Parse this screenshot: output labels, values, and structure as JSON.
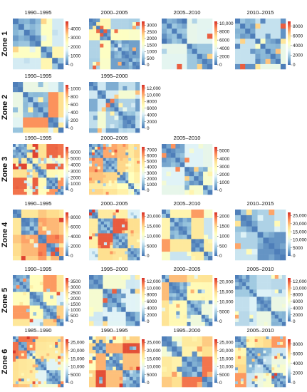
{
  "chart_data": {
    "type": "heatmap",
    "colorscale": [
      "#4575b4",
      "#91bfdb",
      "#e0f3f8",
      "#ffffbf",
      "#fee090",
      "#fc8d59",
      "#d73027"
    ],
    "zones": [
      {
        "label": "Zone 1",
        "panels": [
          {
            "title": "1990–1995",
            "max": 4800,
            "ticks": [
              {
                "v": 0,
                "label": "0"
              },
              {
                "v": 1000,
                "label": "1000"
              },
              {
                "v": 2000,
                "label": "2000"
              },
              {
                "v": 3000,
                "label": "3000"
              },
              {
                "v": 4000,
                "label": "4000"
              }
            ]
          },
          {
            "title": "2000–2005",
            "max": 3300,
            "ticks": [
              {
                "v": 0,
                "label": "0"
              },
              {
                "v": 500,
                "label": "500"
              },
              {
                "v": 1000,
                "label": "1000"
              },
              {
                "v": 1500,
                "label": "1500"
              },
              {
                "v": 2000,
                "label": "2000"
              },
              {
                "v": 2500,
                "label": "2500"
              },
              {
                "v": 3000,
                "label": "3000"
              }
            ]
          },
          {
            "title": "2005–2010",
            "max": 10500,
            "ticks": [
              {
                "v": 0,
                "label": "0"
              },
              {
                "v": 2000,
                "label": "2000"
              },
              {
                "v": 4000,
                "label": "4000"
              },
              {
                "v": 6000,
                "label": "6000"
              },
              {
                "v": 8000,
                "label": "8000"
              },
              {
                "v": 10000,
                "label": "10,000"
              }
            ]
          },
          {
            "title": "2010–2015",
            "max": 9000,
            "ticks": [
              {
                "v": 0,
                "label": "0"
              },
              {
                "v": 2000,
                "label": "2000"
              },
              {
                "v": 4000,
                "label": "4000"
              },
              {
                "v": 6000,
                "label": "6000"
              },
              {
                "v": 8000,
                "label": "8000"
              }
            ]
          }
        ]
      },
      {
        "label": "Zone 2",
        "panels": [
          {
            "title": "1990–1995",
            "max": 1100,
            "ticks": [
              {
                "v": 0,
                "label": "0"
              },
              {
                "v": 200,
                "label": "200"
              },
              {
                "v": 400,
                "label": "400"
              },
              {
                "v": 600,
                "label": "600"
              },
              {
                "v": 800,
                "label": "800"
              },
              {
                "v": 1000,
                "label": "1000"
              }
            ]
          },
          {
            "title": "1995–2000",
            "max": 13000,
            "ticks": [
              {
                "v": 0,
                "label": "0"
              },
              {
                "v": 2000,
                "label": "2000"
              },
              {
                "v": 4000,
                "label": "4000"
              },
              {
                "v": 6000,
                "label": "6000"
              },
              {
                "v": 8000,
                "label": "8000"
              },
              {
                "v": 10000,
                "label": "10,000"
              },
              {
                "v": 12000,
                "label": "12,000"
              }
            ]
          }
        ]
      },
      {
        "label": "Zone 3",
        "panels": [
          {
            "title": "1990–1995",
            "max": 6800,
            "ticks": [
              {
                "v": 0,
                "label": "0"
              },
              {
                "v": 1000,
                "label": "1000"
              },
              {
                "v": 2000,
                "label": "2000"
              },
              {
                "v": 3000,
                "label": "3000"
              },
              {
                "v": 4000,
                "label": "4000"
              },
              {
                "v": 5000,
                "label": "5000"
              },
              {
                "v": 6000,
                "label": "6000"
              }
            ]
          },
          {
            "title": "2000–2005",
            "max": 7500,
            "ticks": [
              {
                "v": 0,
                "label": "0"
              },
              {
                "v": 1000,
                "label": "1000"
              },
              {
                "v": 2000,
                "label": "2000"
              },
              {
                "v": 3000,
                "label": "3000"
              },
              {
                "v": 4000,
                "label": "4000"
              },
              {
                "v": 5000,
                "label": "5000"
              },
              {
                "v": 6000,
                "label": "6000"
              },
              {
                "v": 7000,
                "label": "7000"
              }
            ]
          },
          {
            "title": "2005–2010",
            "max": 5500,
            "ticks": [
              {
                "v": 0,
                "label": "0"
              },
              {
                "v": 1000,
                "label": "1000"
              },
              {
                "v": 2000,
                "label": "2000"
              },
              {
                "v": 3000,
                "label": "3000"
              },
              {
                "v": 4000,
                "label": "4000"
              },
              {
                "v": 5000,
                "label": "5000"
              }
            ]
          }
        ]
      },
      {
        "label": "Zone 4",
        "panels": [
          {
            "title": "1990–1995",
            "max": 9000,
            "ticks": [
              {
                "v": 0,
                "label": "0"
              },
              {
                "v": 2000,
                "label": "2000"
              },
              {
                "v": 4000,
                "label": "4000"
              },
              {
                "v": 6000,
                "label": "6000"
              },
              {
                "v": 8000,
                "label": "8000"
              }
            ]
          },
          {
            "title": "2000–2005",
            "max": 22000,
            "ticks": [
              {
                "v": 0,
                "label": "0"
              },
              {
                "v": 5000,
                "label": "5000"
              },
              {
                "v": 10000,
                "label": "10,000"
              },
              {
                "v": 15000,
                "label": "15,000"
              },
              {
                "v": 20000,
                "label": "20,000"
              }
            ]
          },
          {
            "title": "2005–2010",
            "max": 2200,
            "ticks": [
              {
                "v": 0,
                "label": "0"
              },
              {
                "v": 500,
                "label": "500"
              },
              {
                "v": 1000,
                "label": "1000"
              },
              {
                "v": 1500,
                "label": "1500"
              },
              {
                "v": 2000,
                "label": "2000"
              }
            ]
          },
          {
            "title": "2010–2015",
            "max": 27000,
            "ticks": [
              {
                "v": 0,
                "label": "0"
              },
              {
                "v": 5000,
                "label": "5000"
              },
              {
                "v": 10000,
                "label": "10,000"
              },
              {
                "v": 15000,
                "label": "15,000"
              },
              {
                "v": 20000,
                "label": "20,000"
              },
              {
                "v": 25000,
                "label": "25,000"
              }
            ]
          }
        ]
      },
      {
        "label": "Zone 5",
        "panels": [
          {
            "title": "1990–1995",
            "max": 3800,
            "ticks": [
              {
                "v": 0,
                "label": "0"
              },
              {
                "v": 500,
                "label": "500"
              },
              {
                "v": 1000,
                "label": "1000"
              },
              {
                "v": 1500,
                "label": "1500"
              },
              {
                "v": 2000,
                "label": "2000"
              },
              {
                "v": 2500,
                "label": "2500"
              },
              {
                "v": 3000,
                "label": "3000"
              },
              {
                "v": 3500,
                "label": "3500"
              }
            ]
          },
          {
            "title": "1995–2000",
            "max": 13000,
            "ticks": [
              {
                "v": 0,
                "label": "0"
              },
              {
                "v": 2000,
                "label": "2000"
              },
              {
                "v": 4000,
                "label": "4000"
              },
              {
                "v": 6000,
                "label": "6000"
              },
              {
                "v": 8000,
                "label": "8000"
              },
              {
                "v": 10000,
                "label": "10,000"
              },
              {
                "v": 12000,
                "label": "12,000"
              }
            ]
          },
          {
            "title": "2000–2005",
            "max": 22000,
            "ticks": [
              {
                "v": 0,
                "label": "0"
              },
              {
                "v": 5000,
                "label": "5000"
              },
              {
                "v": 10000,
                "label": "10,000"
              },
              {
                "v": 15000,
                "label": "15,000"
              },
              {
                "v": 20000,
                "label": "20,000"
              }
            ]
          },
          {
            "title": "2005–2010",
            "max": 13000,
            "ticks": [
              {
                "v": 0,
                "label": "0"
              },
              {
                "v": 2000,
                "label": "2000"
              },
              {
                "v": 4000,
                "label": "4000"
              },
              {
                "v": 6000,
                "label": "6000"
              },
              {
                "v": 8000,
                "label": "8000"
              },
              {
                "v": 10000,
                "label": "10,000"
              },
              {
                "v": 12000,
                "label": "12,000"
              }
            ]
          }
        ]
      },
      {
        "label": "Zone 6",
        "panels": [
          {
            "title": "1985–1990",
            "max": 27000,
            "ticks": [
              {
                "v": 0,
                "label": "0"
              },
              {
                "v": 5000,
                "label": "5000"
              },
              {
                "v": 10000,
                "label": "10,000"
              },
              {
                "v": 15000,
                "label": "15,000"
              },
              {
                "v": 20000,
                "label": "20,000"
              },
              {
                "v": 25000,
                "label": "25,000"
              }
            ]
          },
          {
            "title": "1990–1995",
            "max": 27000,
            "ticks": [
              {
                "v": 0,
                "label": "0"
              },
              {
                "v": 5000,
                "label": "5000"
              },
              {
                "v": 10000,
                "label": "10,000"
              },
              {
                "v": 15000,
                "label": "15,000"
              },
              {
                "v": 20000,
                "label": "20,000"
              },
              {
                "v": 25000,
                "label": "25,000"
              }
            ]
          },
          {
            "title": "1995–2000",
            "max": 27000,
            "ticks": [
              {
                "v": 0,
                "label": "0"
              },
              {
                "v": 5000,
                "label": "5000"
              },
              {
                "v": 10000,
                "label": "10,000"
              },
              {
                "v": 15000,
                "label": "15,000"
              },
              {
                "v": 20000,
                "label": "20,000"
              },
              {
                "v": 25000,
                "label": "25,000"
              }
            ]
          },
          {
            "title": "2005–2010",
            "max": 9000,
            "ticks": [
              {
                "v": 0,
                "label": "0"
              },
              {
                "v": 2000,
                "label": "2000"
              },
              {
                "v": 4000,
                "label": "4000"
              },
              {
                "v": 6000,
                "label": "6000"
              },
              {
                "v": 8000,
                "label": "8000"
              }
            ]
          }
        ]
      }
    ]
  }
}
